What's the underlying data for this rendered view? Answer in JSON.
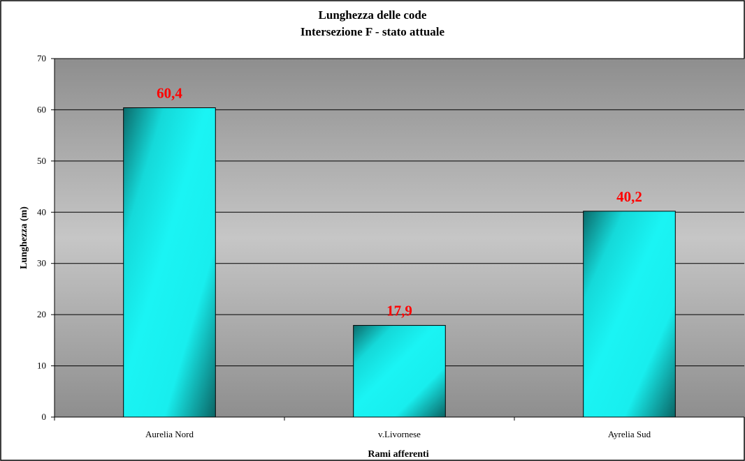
{
  "chart_data": {
    "type": "bar",
    "title": "Lunghezza delle code",
    "subtitle": "Intersezione F - stato attuale",
    "xlabel": "Rami afferenti",
    "ylabel": "Lunghezza (m)",
    "categories": [
      "Aurelia Nord",
      "v.Livornese",
      "Ayrelia Sud"
    ],
    "values": [
      60.4,
      17.9,
      40.2
    ],
    "data_labels": [
      "60,4",
      "17,9",
      "40,2"
    ],
    "ylim": [
      0,
      70
    ],
    "yticks": [
      0,
      10,
      20,
      30,
      40,
      50,
      60,
      70
    ],
    "grid": true,
    "legend": "none",
    "colors": {
      "bar_light": "#19f4f4",
      "bar_dark": "#0a6e6e",
      "data_label": "#ff0000",
      "plot_bg_dark": "#8c8c8c",
      "plot_bg_light": "#c8c8c8"
    }
  }
}
